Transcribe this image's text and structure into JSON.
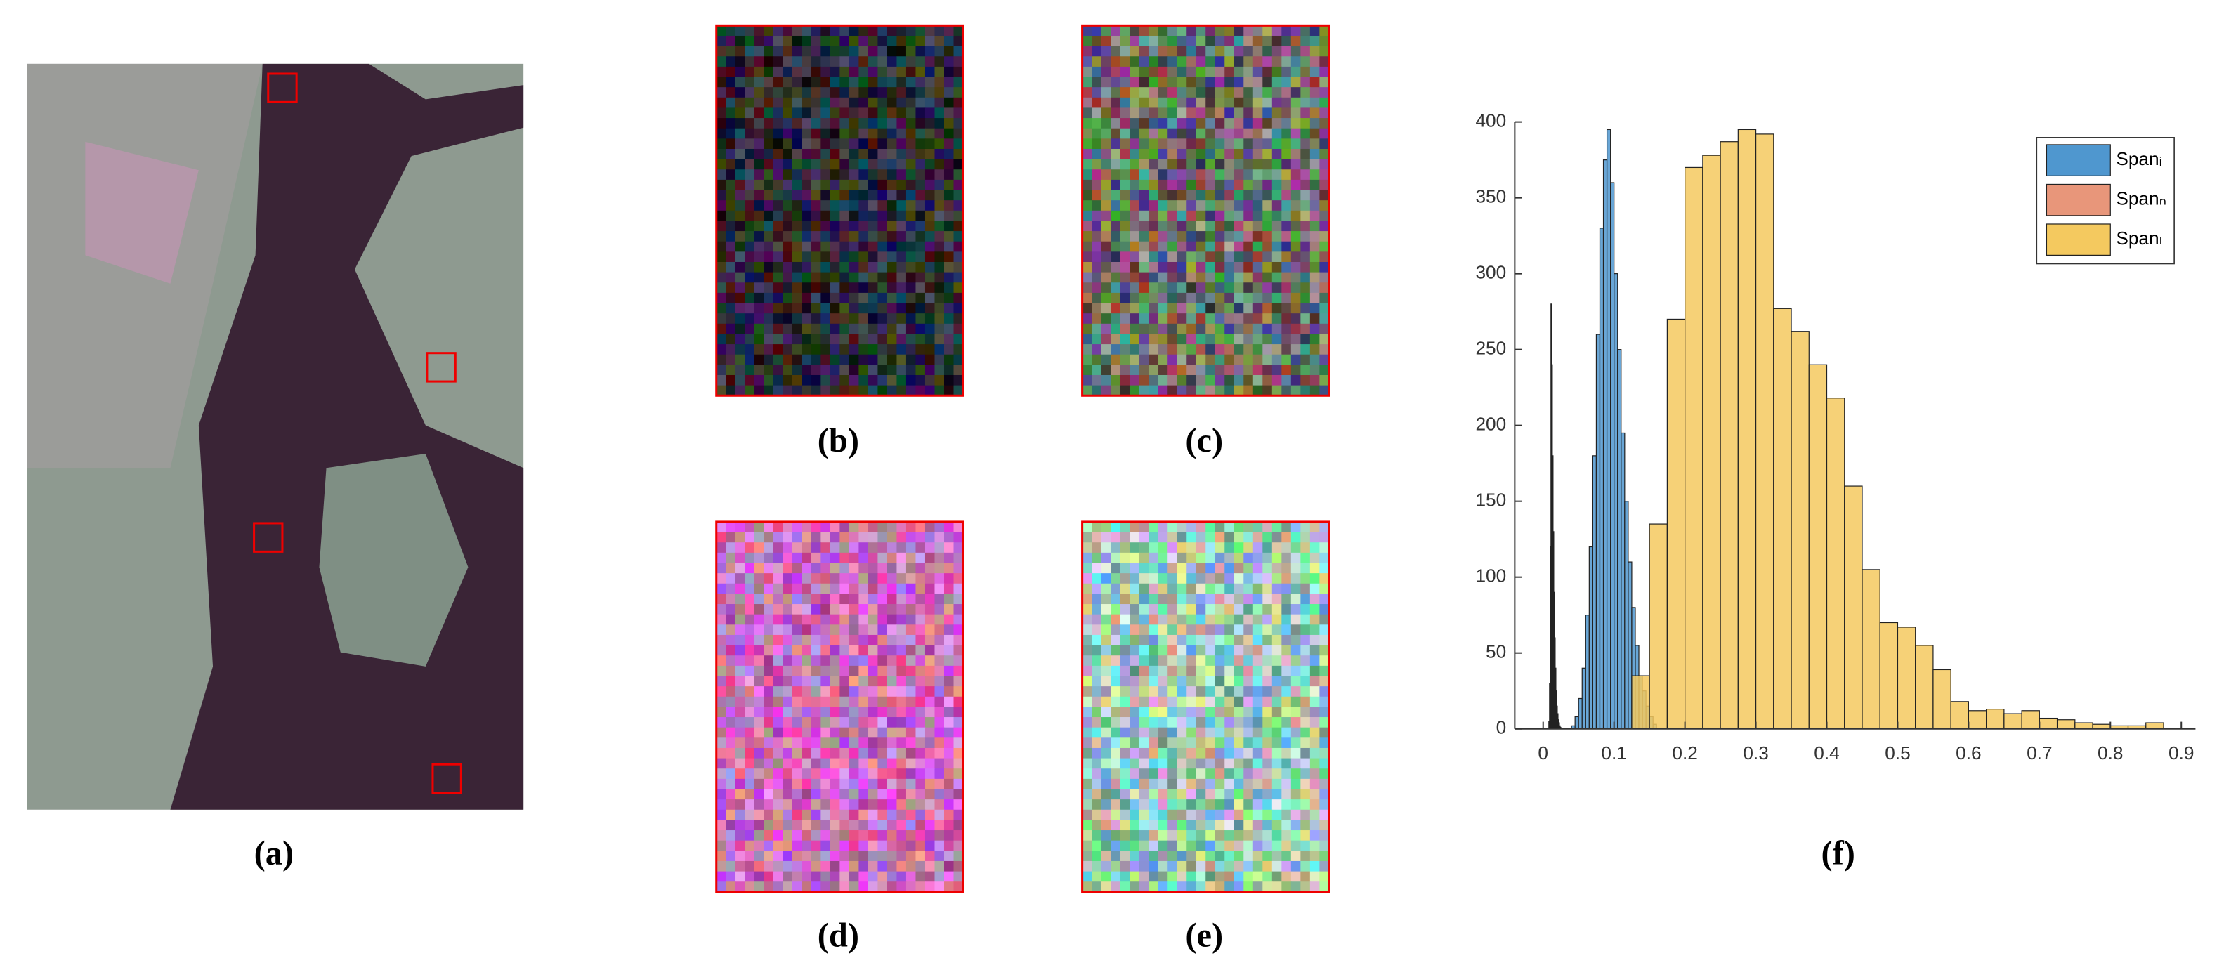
{
  "panels": [
    {
      "label": "(a)"
    },
    {
      "label": "(b)"
    },
    {
      "label": "(c)"
    },
    {
      "label": "(d)"
    },
    {
      "label": "(e)"
    },
    {
      "label": "(f)"
    }
  ],
  "chart_data": {
    "type": "histogram",
    "xlim": [
      -0.04,
      0.92
    ],
    "xticks": [
      0,
      0.1,
      0.2,
      0.3,
      0.4,
      0.5,
      0.6,
      0.7,
      0.8,
      0.9
    ],
    "ylim": [
      0,
      400
    ],
    "yticks": [
      0,
      50,
      100,
      150,
      200,
      250,
      300,
      350,
      400
    ],
    "legend": "top-right",
    "series": [
      {
        "name": "Spanᵢ",
        "color": "#4f97cf",
        "bins": [
          0.04,
          0.045,
          0.05,
          0.055,
          0.06,
          0.065,
          0.07,
          0.075,
          0.08,
          0.085,
          0.09,
          0.095,
          0.1,
          0.105,
          0.11,
          0.115,
          0.12,
          0.125,
          0.13,
          0.135,
          0.14,
          0.145,
          0.15,
          0.155,
          0.16
        ],
        "values": [
          2,
          8,
          20,
          40,
          75,
          120,
          180,
          260,
          330,
          375,
          395,
          360,
          300,
          250,
          195,
          150,
          110,
          80,
          55,
          35,
          25,
          15,
          8,
          3
        ]
      },
      {
        "name": "Spanₙ",
        "color": "#e8967a",
        "bins": [
          0.008,
          0.009,
          0.01,
          0.011,
          0.012,
          0.013,
          0.014,
          0.015,
          0.016,
          0.017,
          0.018,
          0.019,
          0.02,
          0.021,
          0.022,
          0.023,
          0.024,
          0.025
        ],
        "values": [
          5,
          30,
          120,
          280,
          240,
          180,
          130,
          90,
          60,
          40,
          25,
          15,
          10,
          6,
          4,
          2,
          1
        ]
      },
      {
        "name": "Spanₗ",
        "color": "#f4c95f",
        "bins": [
          0.125,
          0.15,
          0.175,
          0.2,
          0.225,
          0.25,
          0.275,
          0.3,
          0.325,
          0.35,
          0.375,
          0.4,
          0.425,
          0.45,
          0.475,
          0.5,
          0.525,
          0.55,
          0.575,
          0.6,
          0.625,
          0.65,
          0.675,
          0.7,
          0.725,
          0.75,
          0.775,
          0.8,
          0.825,
          0.85,
          0.875
        ],
        "values": [
          35,
          135,
          270,
          370,
          378,
          387,
          395,
          392,
          277,
          262,
          240,
          218,
          160,
          105,
          70,
          67,
          55,
          39,
          18,
          12,
          13,
          10,
          12,
          7,
          6,
          4,
          3,
          2,
          2,
          4
        ]
      }
    ]
  }
}
